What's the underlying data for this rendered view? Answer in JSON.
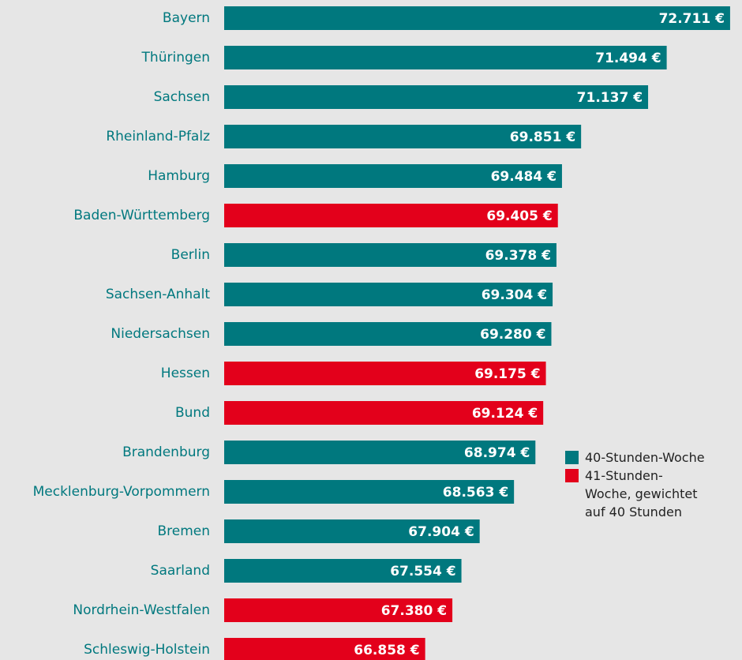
{
  "chart_data": {
    "type": "bar",
    "orientation": "horizontal",
    "categories": [
      "Bayern",
      "Thüringen",
      "Sachsen",
      "Rheinland-Pfalz",
      "Hamburg",
      "Baden-Württemberg",
      "Berlin",
      "Sachsen-Anhalt",
      "Niedersachsen",
      "Hessen",
      "Bund",
      "Brandenburg",
      "Mecklenburg-Vorpommern",
      "Bremen",
      "Saarland",
      "Nordrhein-Westfalen",
      "Schleswig-Holstein"
    ],
    "values": [
      72711,
      71494,
      71137,
      69851,
      69484,
      69405,
      69378,
      69304,
      69280,
      69175,
      69124,
      68974,
      68563,
      67904,
      67554,
      67380,
      66858
    ],
    "value_labels": [
      "72.711 €",
      "71.494 €",
      "71.137 €",
      "69.851 €",
      "69.484 €",
      "69.405 €",
      "69.378 €",
      "69.304 €",
      "69.280 €",
      "69.175 €",
      "69.124 €",
      "68.974 €",
      "68.563 €",
      "67.904 €",
      "67.554 €",
      "67.380 €",
      "66.858 €"
    ],
    "colors": [
      "#00787e",
      "#00787e",
      "#00787e",
      "#00787e",
      "#00787e",
      "#e3001b",
      "#00787e",
      "#00787e",
      "#00787e",
      "#e3001b",
      "#e3001b",
      "#00787e",
      "#00787e",
      "#00787e",
      "#00787e",
      "#e3001b",
      "#e3001b"
    ],
    "legend": [
      {
        "name": "40-Stunden-Woche",
        "color": "#00787e"
      },
      {
        "name": "41-Stunden-Woche, gewichtet auf 40 Stunden",
        "color": "#e3001b"
      }
    ],
    "xlim": [
      63000,
      73000
    ]
  }
}
